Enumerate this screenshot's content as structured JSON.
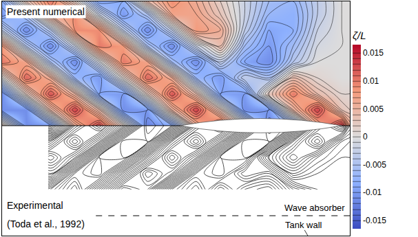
{
  "chart_data": {
    "type": "contour",
    "xlim": [
      -1.6,
      0.55
    ],
    "ylim": [
      -0.69,
      0.78
    ],
    "tick_labels": false,
    "colorbar": {
      "title": "ζ/L",
      "zlim": [
        -0.0165,
        0.0165
      ],
      "zticks": [
        0.015,
        0.01,
        0.005,
        0,
        -0.005,
        -0.01,
        -0.015
      ]
    },
    "panels": [
      {
        "label": "Present numerical",
        "x": [
          -1.6,
          -1.45,
          -1.3,
          -1.15,
          -1.0,
          -0.85,
          -0.7,
          -0.55,
          -0.4,
          -0.25,
          -0.1,
          0.05,
          0.2,
          0.35,
          0.5,
          0.55
        ],
        "y": [
          0,
          0.1,
          0.2,
          0.3,
          0.4,
          0.5,
          0.6,
          0.7,
          0.78
        ],
        "z": [
          [
            0.003,
            -0.011,
            -0.01,
            0.006,
            0.013,
            0.002,
            -0.012,
            -0.009,
            0.006,
            0.013,
            0.002,
            -0.012,
            -0.009,
            0.007,
            0.014,
            0.006
          ],
          [
            -0.011,
            -0.011,
            0.004,
            0.013,
            0.004,
            -0.011,
            -0.01,
            0.005,
            0.013,
            0.003,
            -0.011,
            -0.01,
            0.005,
            0.013,
            0.003,
            0.002
          ],
          [
            -0.011,
            0.002,
            0.012,
            0.005,
            -0.009,
            -0.01,
            0.002,
            0.012,
            0.004,
            -0.009,
            -0.01,
            0.003,
            0.01,
            0.004,
            0.001,
            0.001
          ],
          [
            0,
            0.011,
            0.006,
            -0.007,
            -0.01,
            0.001,
            0.011,
            0.006,
            -0.007,
            -0.01,
            -0.003,
            -0.005,
            0.004,
            0.001,
            0,
            0
          ],
          [
            0.01,
            0.007,
            -0.005,
            -0.011,
            -0.001,
            0.01,
            0.007,
            -0.006,
            -0.011,
            -0.003,
            -0.009,
            -0.011,
            -0.004,
            0,
            0,
            0
          ],
          [
            0.008,
            -0.004,
            -0.011,
            -0.002,
            0.01,
            0.008,
            -0.005,
            -0.011,
            -0.002,
            0.004,
            -0.006,
            -0.01,
            -0.006,
            -0.001,
            0,
            0
          ],
          [
            -0.003,
            -0.011,
            -0.004,
            0.009,
            0.009,
            -0.003,
            -0.011,
            -0.003,
            0.008,
            0.006,
            -0.003,
            -0.009,
            -0.008,
            -0.002,
            0,
            0
          ],
          [
            -0.01,
            -0.005,
            0.007,
            0.009,
            -0.002,
            -0.01,
            -0.005,
            0.007,
            0.007,
            0.003,
            -0.002,
            -0.007,
            -0.008,
            -0.003,
            0,
            0
          ],
          [
            -0.008,
            0.003,
            0.01,
            0.002,
            -0.009,
            -0.008,
            0.004,
            0.009,
            0.006,
            0.002,
            -0.002,
            -0.006,
            -0.007,
            -0.003,
            0,
            0
          ]
        ]
      },
      {
        "label": "Experimental",
        "source": "(Toda et al., 1992)",
        "color": "#000000",
        "x": [
          -1.6,
          -1.45,
          -1.3,
          -1.15,
          -1.0,
          -0.85,
          -0.7,
          -0.55,
          -0.4,
          -0.25,
          -0.1,
          0.05,
          0.2,
          0.35,
          0.5,
          0.55
        ],
        "y": [
          -0.4,
          -0.3,
          -0.2,
          -0.1,
          0
        ],
        "z": [
          [
            null,
            null,
            -0.005,
            -0.011,
            -0.001,
            0.01,
            0.007,
            -0.006,
            -0.011,
            -0.003,
            -0.009,
            -0.011,
            -0.004,
            0,
            0,
            0
          ],
          [
            null,
            null,
            0.006,
            -0.007,
            -0.01,
            0.001,
            0.011,
            0.006,
            -0.007,
            -0.01,
            -0.003,
            -0.005,
            0.004,
            0.001,
            0,
            0
          ],
          [
            null,
            null,
            0.012,
            0.005,
            -0.009,
            -0.01,
            0.002,
            0.012,
            0.004,
            -0.009,
            -0.01,
            0.003,
            0.01,
            0.004,
            0.001,
            0.001
          ],
          [
            null,
            null,
            0.004,
            0.013,
            0.004,
            -0.011,
            -0.01,
            0.005,
            0.013,
            0.003,
            -0.011,
            -0.01,
            0.005,
            0.013,
            0.003,
            0.002
          ],
          [
            null,
            null,
            -0.01,
            0.006,
            0.013,
            0.002,
            -0.012,
            -0.009,
            0.006,
            0.013,
            0.002,
            -0.012,
            -0.009,
            0.007,
            0.014,
            0.006
          ]
        ]
      }
    ],
    "annotations": [
      "Wave absorber",
      "Tank wall"
    ]
  }
}
